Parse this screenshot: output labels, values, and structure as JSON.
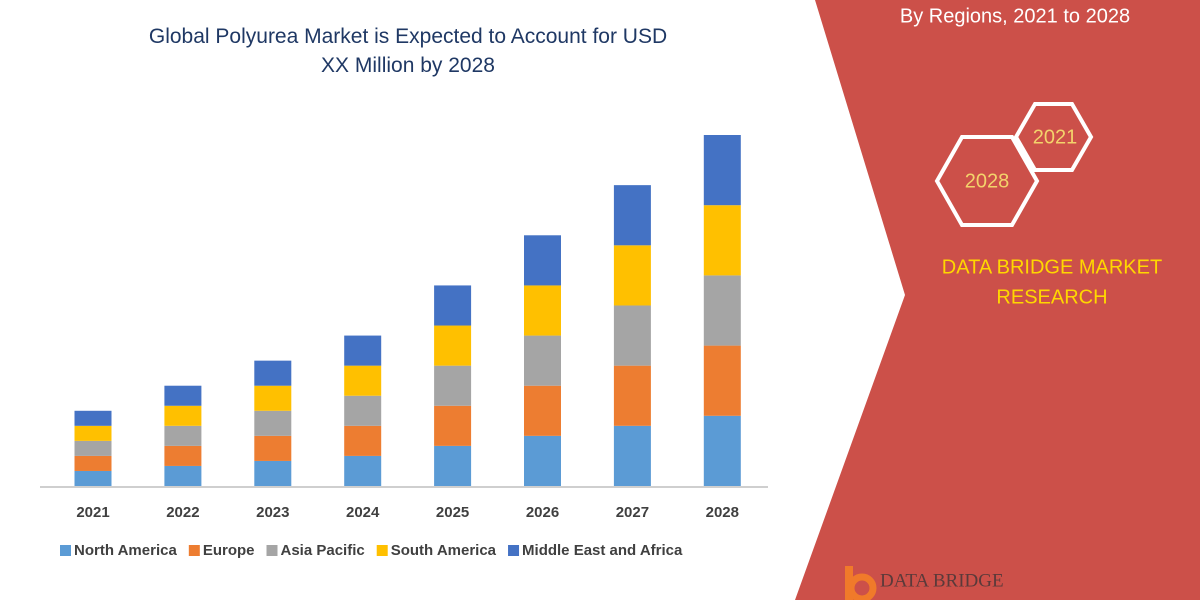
{
  "chart_data": {
    "type": "stacked_bar",
    "title": "Global Polyurea Market is Expected to Account for USD XX Million by 2028",
    "categories": [
      "2021",
      "2022",
      "2023",
      "2024",
      "2025",
      "2026",
      "2027",
      "2028"
    ],
    "series": [
      {
        "name": "North America",
        "color": "#5b9bd5",
        "values": [
          15,
          20,
          25,
          30,
          40,
          50,
          60,
          70
        ]
      },
      {
        "name": "Europe",
        "color": "#ed7d31",
        "values": [
          15,
          20,
          25,
          30,
          40,
          50,
          60,
          70
        ]
      },
      {
        "name": "Asia Pacific",
        "color": "#a5a5a5",
        "values": [
          15,
          20,
          25,
          30,
          40,
          50,
          60,
          70
        ]
      },
      {
        "name": "South America",
        "color": "#ffc000",
        "values": [
          15,
          20,
          25,
          30,
          40,
          50,
          60,
          70
        ]
      },
      {
        "name": "Middle East and Africa",
        "color": "#4472c4",
        "values": [
          15,
          20,
          25,
          30,
          40,
          50,
          60,
          70
        ]
      }
    ]
  },
  "panel": {
    "heading": "By Regions, 2021 to 2028",
    "hex_labels": [
      "2021",
      "2028"
    ],
    "brand_lines": [
      "DATA BRIDGE MARKET",
      "RESEARCH"
    ],
    "logo": "DATA BRIDGE"
  }
}
